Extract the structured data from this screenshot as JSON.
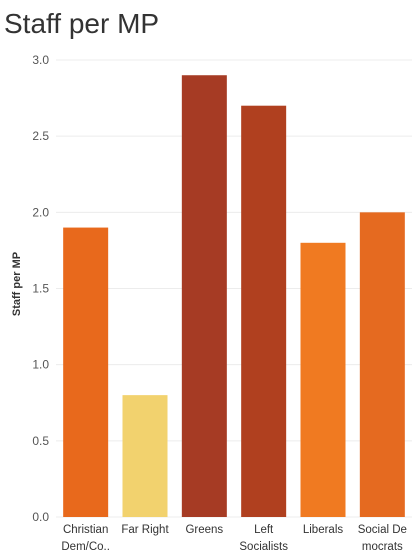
{
  "title": "Staff per MP",
  "chart_data": {
    "type": "bar",
    "title": "Staff per MP",
    "xlabel": "",
    "ylabel": "Staff per MP",
    "ylim": [
      0,
      3.0
    ],
    "yticks": [
      "0.0",
      "0.5",
      "1.0",
      "1.5",
      "2.0",
      "2.5",
      "3.0"
    ],
    "categories": [
      {
        "lines": [
          "Christian",
          "Dem/Co.."
        ],
        "value": 1.9,
        "color": "#e8691c"
      },
      {
        "lines": [
          "Far Right"
        ],
        "value": 0.8,
        "color": "#f2d26e"
      },
      {
        "lines": [
          "Greens"
        ],
        "value": 2.9,
        "color": "#a63b24"
      },
      {
        "lines": [
          "Left",
          "Socialists"
        ],
        "value": 2.7,
        "color": "#b0401f"
      },
      {
        "lines": [
          "Liberals"
        ],
        "value": 1.8,
        "color": "#f07a21"
      },
      {
        "lines": [
          "Social De",
          "mocrats"
        ],
        "value": 2.0,
        "color": "#e56a20"
      }
    ],
    "grid": true,
    "gridlines_color": "#ececec"
  }
}
